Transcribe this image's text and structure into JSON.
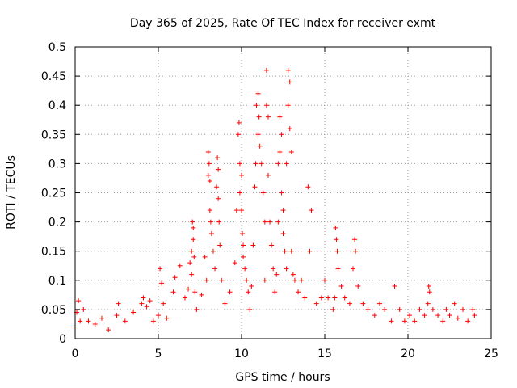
{
  "chart_data": {
    "type": "scatter",
    "title": "Day 365 of 2025, Rate Of TEC Index for receiver exmt",
    "xlabel": "GPS time / hours",
    "ylabel": "ROTI / TECUs",
    "xlim": [
      0,
      25
    ],
    "ylim": [
      0,
      0.5
    ],
    "x_ticks": [
      0,
      5,
      10,
      15,
      20,
      25
    ],
    "x_tick_labels": [
      "0",
      "5",
      "10",
      "15",
      "20",
      "25"
    ],
    "y_ticks": [
      0,
      0.05,
      0.1,
      0.15,
      0.2,
      0.25,
      0.3,
      0.35,
      0.4,
      0.45,
      0.5
    ],
    "y_tick_labels": [
      "0",
      "0.05",
      "0.1",
      "0.15",
      "0.2",
      "0.25",
      "0.3",
      "0.35",
      "0.4",
      "0.45",
      "0.5"
    ],
    "grid": true,
    "marker": "+",
    "series": [
      {
        "name": "ROTI",
        "color": "#ff0000",
        "x": [
          0.0,
          0.1,
          0.2,
          0.3,
          0.5,
          0.8,
          1.2,
          1.6,
          2.0,
          2.5,
          2.6,
          3.0,
          3.5,
          4.0,
          4.1,
          4.3,
          4.5,
          4.7,
          5.0,
          5.1,
          5.2,
          5.3,
          5.5,
          5.9,
          6.0,
          6.3,
          6.6,
          6.8,
          6.9,
          7.0,
          7.0,
          7.05,
          7.1,
          7.1,
          7.15,
          7.2,
          7.3,
          7.6,
          7.8,
          7.9,
          8.0,
          8.0,
          8.05,
          8.1,
          8.1,
          8.15,
          8.2,
          8.3,
          8.4,
          8.5,
          8.55,
          8.6,
          8.6,
          8.65,
          8.7,
          8.8,
          9.0,
          9.3,
          9.6,
          9.7,
          9.8,
          9.85,
          9.9,
          9.9,
          10.0,
          10.0,
          10.05,
          10.1,
          10.1,
          10.2,
          10.3,
          10.4,
          10.5,
          10.6,
          10.7,
          10.8,
          10.85,
          10.9,
          11.0,
          11.0,
          11.05,
          11.1,
          11.2,
          11.3,
          11.4,
          11.4,
          11.5,
          11.5,
          11.6,
          11.6,
          11.7,
          11.8,
          11.9,
          12.0,
          12.1,
          12.2,
          12.2,
          12.3,
          12.3,
          12.4,
          12.4,
          12.5,
          12.5,
          12.6,
          12.7,
          12.7,
          12.8,
          12.8,
          12.9,
          12.9,
          13.0,
          13.0,
          13.1,
          13.2,
          13.4,
          13.6,
          13.8,
          14.0,
          14.1,
          14.2,
          14.5,
          14.8,
          15.0,
          15.2,
          15.5,
          15.6,
          15.65,
          15.7,
          15.75,
          15.8,
          16.0,
          16.2,
          16.5,
          16.7,
          16.8,
          16.85,
          17.0,
          17.3,
          17.6,
          18.0,
          18.3,
          18.6,
          19.0,
          19.2,
          19.5,
          19.8,
          20.1,
          20.4,
          20.7,
          21.0,
          21.2,
          21.25,
          21.3,
          21.5,
          21.8,
          22.1,
          22.3,
          22.5,
          22.8,
          23.0,
          23.3,
          23.6,
          23.9,
          24.0
        ],
        "y": [
          0.02,
          0.045,
          0.065,
          0.03,
          0.05,
          0.03,
          0.025,
          0.035,
          0.015,
          0.04,
          0.06,
          0.03,
          0.045,
          0.06,
          0.07,
          0.055,
          0.065,
          0.03,
          0.04,
          0.12,
          0.095,
          0.06,
          0.035,
          0.08,
          0.105,
          0.125,
          0.07,
          0.085,
          0.13,
          0.11,
          0.15,
          0.2,
          0.17,
          0.19,
          0.14,
          0.08,
          0.05,
          0.075,
          0.14,
          0.1,
          0.32,
          0.28,
          0.3,
          0.22,
          0.27,
          0.2,
          0.18,
          0.15,
          0.12,
          0.26,
          0.31,
          0.29,
          0.24,
          0.2,
          0.16,
          0.1,
          0.06,
          0.08,
          0.13,
          0.22,
          0.35,
          0.37,
          0.3,
          0.25,
          0.28,
          0.22,
          0.18,
          0.16,
          0.14,
          0.12,
          0.1,
          0.08,
          0.05,
          0.09,
          0.16,
          0.26,
          0.3,
          0.4,
          0.42,
          0.35,
          0.38,
          0.33,
          0.3,
          0.25,
          0.1,
          0.2,
          0.46,
          0.4,
          0.38,
          0.28,
          0.2,
          0.16,
          0.12,
          0.08,
          0.11,
          0.2,
          0.3,
          0.32,
          0.38,
          0.35,
          0.25,
          0.22,
          0.18,
          0.15,
          0.12,
          0.3,
          0.4,
          0.46,
          0.44,
          0.36,
          0.32,
          0.15,
          0.11,
          0.1,
          0.08,
          0.1,
          0.07,
          0.26,
          0.15,
          0.22,
          0.06,
          0.07,
          0.1,
          0.07,
          0.05,
          0.07,
          0.19,
          0.17,
          0.15,
          0.12,
          0.09,
          0.07,
          0.06,
          0.12,
          0.17,
          0.15,
          0.09,
          0.06,
          0.05,
          0.04,
          0.06,
          0.05,
          0.03,
          0.09,
          0.05,
          0.03,
          0.04,
          0.03,
          0.05,
          0.04,
          0.06,
          0.09,
          0.08,
          0.05,
          0.04,
          0.03,
          0.05,
          0.04,
          0.06,
          0.035,
          0.05,
          0.03,
          0.05,
          0.04
        ]
      }
    ]
  }
}
